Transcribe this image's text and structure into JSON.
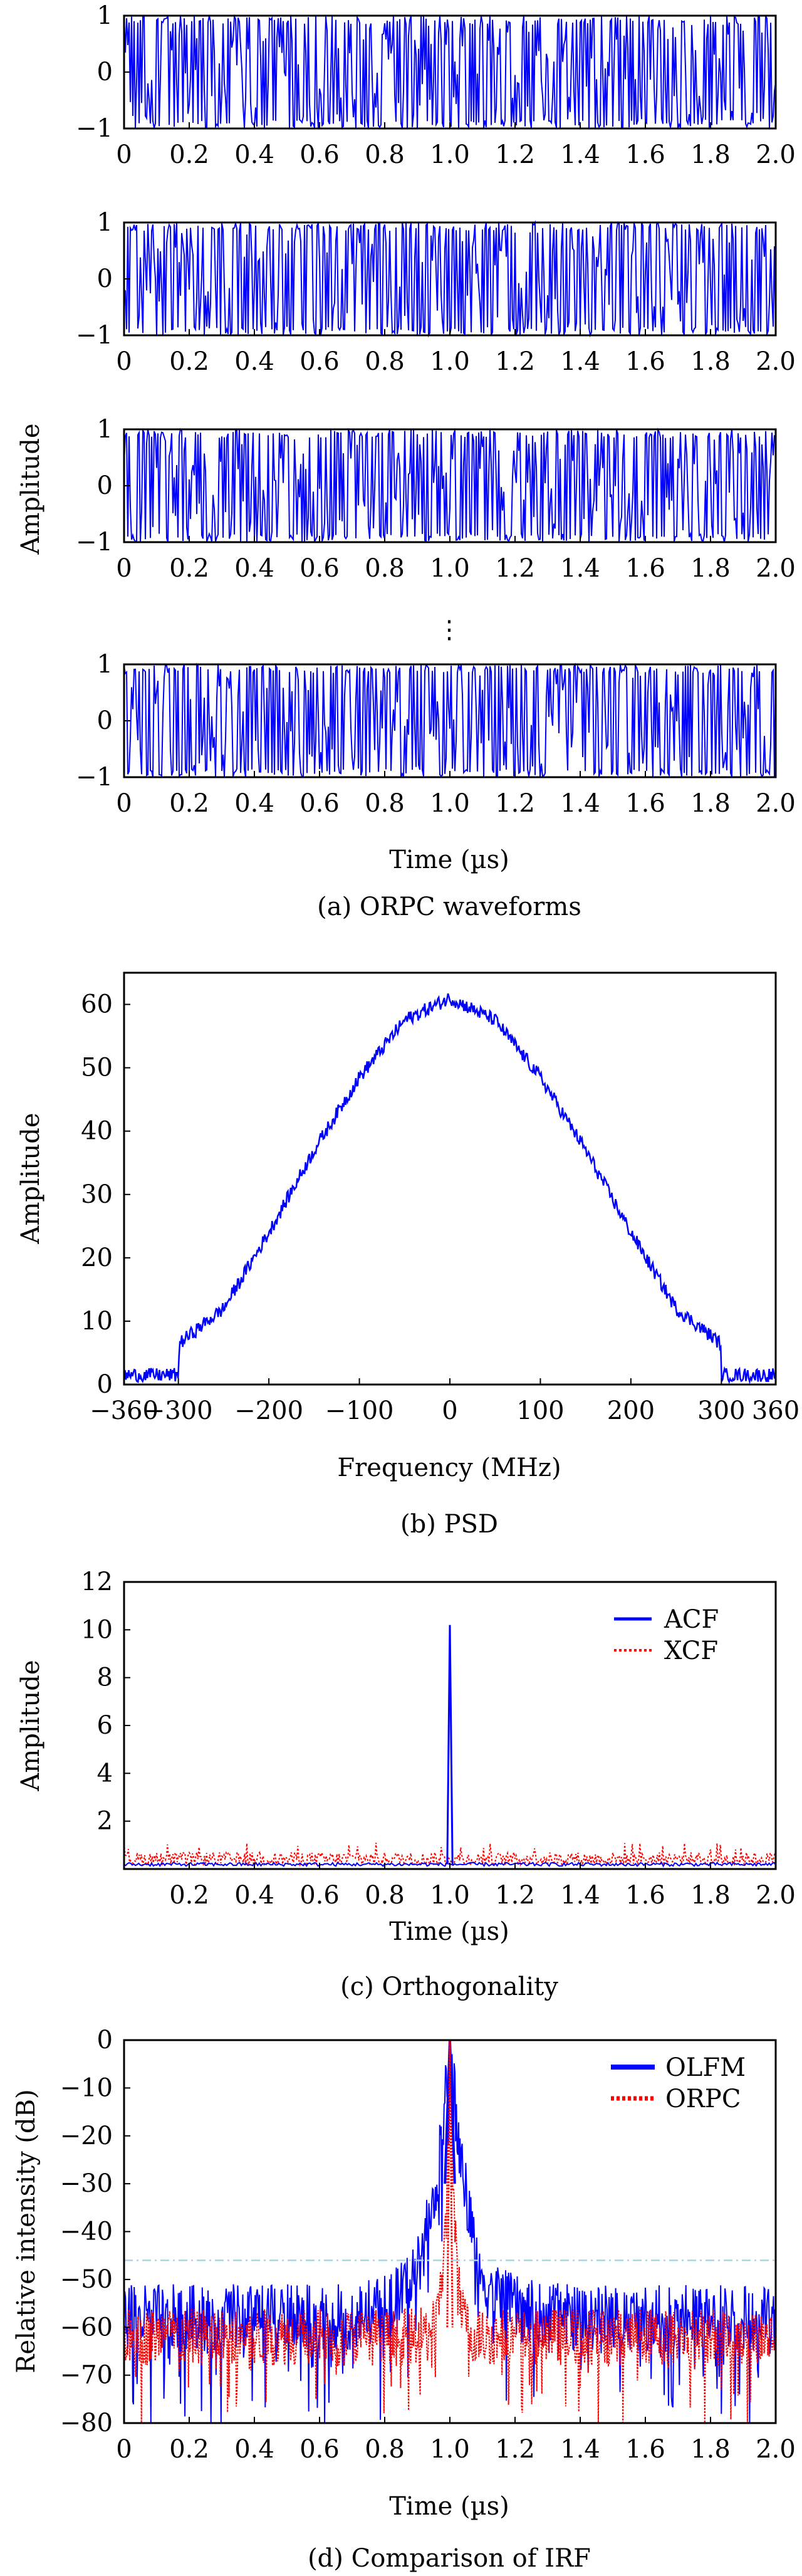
{
  "figure": {
    "panel_a_caption": "(a) ORPC waveforms",
    "panel_b_caption": "(b) PSD",
    "panel_c_caption": "(c) Orthogonality",
    "panel_d_caption": "(d) Comparison of IRF",
    "ellipsis": "⋮"
  },
  "colors": {
    "blue": "#0000ff",
    "red": "#ff0000",
    "refline": "#9fd9e8"
  },
  "chart_data": [
    {
      "id": "a",
      "type": "line",
      "title": "",
      "subplots": 4,
      "xlabel": "Time (µs)",
      "ylabel": "Amplitude",
      "xlim": [
        0,
        2.0
      ],
      "ylim": [
        -1,
        1
      ],
      "xticks": [
        "0",
        "0.2",
        "0.4",
        "0.6",
        "0.8",
        "1.0",
        "1.2",
        "1.4",
        "1.6",
        "1.8",
        "2.0"
      ],
      "yticks": [
        "1",
        "0",
        "−1"
      ],
      "description": "Four random-phase waveforms rapidly switching between −1 and 1 over 0–2.0 µs",
      "grid": false
    },
    {
      "id": "b",
      "type": "line",
      "title": "",
      "xlabel": "Frequency (MHz)",
      "ylabel": "Amplitude",
      "xlim": [
        -360,
        360
      ],
      "ylim": [
        0,
        65
      ],
      "xticks": [
        "−360",
        "−300",
        "−200",
        "−100",
        "0",
        "100",
        "200",
        "300",
        "360"
      ],
      "yticks": [
        "0",
        "10",
        "20",
        "30",
        "40",
        "50",
        "60"
      ],
      "x": [
        -360,
        -300,
        -299,
        -250,
        -200,
        -150,
        -100,
        -50,
        0,
        50,
        100,
        150,
        200,
        250,
        299,
        300,
        360
      ],
      "y": [
        1.5,
        1.5,
        6.5,
        12,
        24,
        37,
        48.5,
        57.5,
        61,
        57.5,
        48.5,
        37,
        24,
        12,
        6.5,
        1.5,
        1.5
      ],
      "grid": false
    },
    {
      "id": "c",
      "type": "line",
      "title": "",
      "xlabel": "Time (µs)",
      "ylabel": "Amplitude",
      "xlim": [
        0,
        2.0
      ],
      "ylim": [
        0,
        12
      ],
      "xticks": [
        "0.2",
        "0.4",
        "0.6",
        "0.8",
        "1.0",
        "1.2",
        "1.4",
        "1.6",
        "1.8",
        "2.0"
      ],
      "yticks": [
        "2",
        "4",
        "6",
        "8",
        "10",
        "12"
      ],
      "legend": "top-right",
      "series": [
        {
          "name": "ACF",
          "peak_x": 1.0,
          "peak_y": 10.2,
          "floor": 0.2
        },
        {
          "name": "XCF",
          "floor": 0.4,
          "max": 1.1
        }
      ],
      "grid": false
    },
    {
      "id": "d",
      "type": "line",
      "title": "",
      "xlabel": "Time (µs)",
      "ylabel": "Relative intensity (dB)",
      "xlim": [
        0,
        2.0
      ],
      "ylim": [
        -80,
        0
      ],
      "xticks": [
        "0",
        "0.2",
        "0.4",
        "0.6",
        "0.8",
        "1.0",
        "1.2",
        "1.4",
        "1.6",
        "1.8",
        "2.0"
      ],
      "yticks": [
        "0",
        "−10",
        "−20",
        "−30",
        "−40",
        "−50",
        "−60",
        "−70",
        "−80"
      ],
      "legend": "top-right",
      "reference_line_db": -46,
      "series": [
        {
          "name": "OLFM",
          "peak_x": 1.0,
          "peak_db": 0,
          "floor_db": -58
        },
        {
          "name": "ORPC",
          "peak_x": 1.0,
          "peak_db": 0,
          "floor_db": -62
        }
      ],
      "grid": false
    }
  ]
}
